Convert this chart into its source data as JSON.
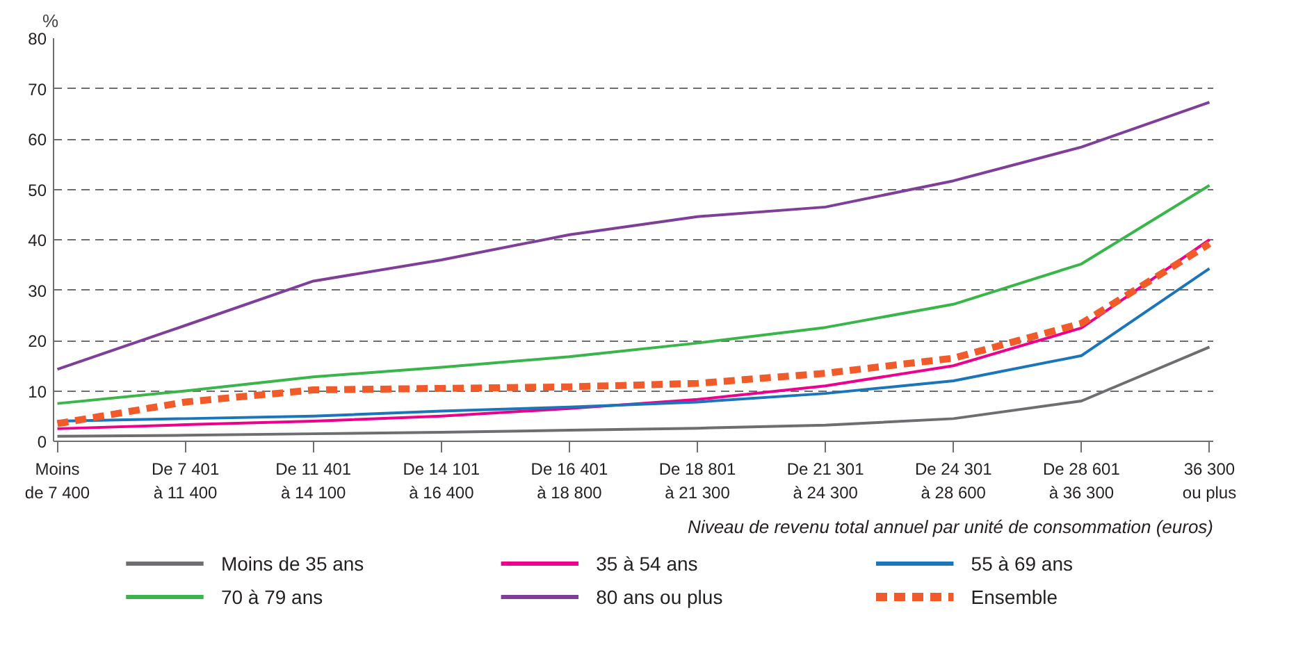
{
  "chart_data": {
    "type": "line",
    "ylabel": "%",
    "xlabel": "Niveau de revenu total annuel par unité de consommation (euros)",
    "categories": [
      "Moins\nde 7 400",
      "De 7 401\nà 11 400",
      "De 11 401\nà 14 100",
      "De 14 101\nà 16 400",
      "De 16 401\nà 18 800",
      "De 18 801\nà 21 300",
      "De 21 301\nà 24 300",
      "De 24 301\nà 28 600",
      "De 28 601\nà 36 300",
      "36 300\nou plus"
    ],
    "ylim": [
      0,
      80
    ],
    "yticks": [
      0,
      10,
      20,
      30,
      40,
      50,
      60,
      70,
      80
    ],
    "grid": "y",
    "legend": "bottom",
    "marker": "none",
    "series": [
      {
        "name": "Moins de 35 ans",
        "color": "#6d6e71",
        "line_style": "solid",
        "values": [
          1,
          1.2,
          1.5,
          1.8,
          2.2,
          2.6,
          3.2,
          4.5,
          8,
          18.7
        ]
      },
      {
        "name": "35 à 54 ans",
        "color": "#ec008c",
        "line_style": "solid",
        "values": [
          2.5,
          3.3,
          4,
          5,
          6.5,
          8.3,
          11,
          15,
          22.5,
          40
        ]
      },
      {
        "name": "55 à 69 ans",
        "color": "#1b75bb",
        "line_style": "solid",
        "values": [
          4,
          4.5,
          5,
          6,
          6.8,
          7.8,
          9.5,
          12,
          17,
          34.3
        ]
      },
      {
        "name": "70 à 79 ans",
        "color": "#39b54a",
        "line_style": "solid",
        "values": [
          7.5,
          10,
          12.8,
          14.7,
          16.8,
          19.5,
          22.6,
          27.2,
          35.2,
          50.8
        ]
      },
      {
        "name": "80 ans ou plus",
        "color": "#7f3f98",
        "line_style": "solid",
        "values": [
          14.3,
          23,
          31.8,
          36,
          41,
          44.6,
          46.5,
          51.7,
          58.4,
          67.3
        ]
      },
      {
        "name": "Ensemble",
        "color": "#f15a29",
        "line_style": "dashed",
        "values": [
          3.5,
          7.8,
          10.2,
          10.5,
          10.8,
          11.5,
          13.5,
          16.5,
          23.4,
          39.2
        ]
      }
    ]
  }
}
